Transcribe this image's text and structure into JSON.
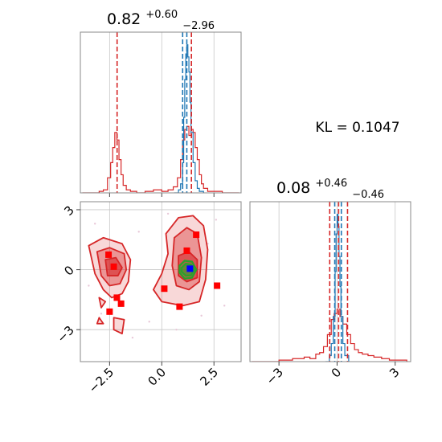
{
  "chart_data": [
    {
      "type": "histogram",
      "panel": "marginal-x",
      "title": {
        "main": "0.82",
        "sup": "+0.60",
        "sub": "−2.96"
      },
      "xlim": [
        -3.9,
        3.8
      ],
      "grid": true,
      "series": [
        {
          "name": "",
          "color": "#d62728",
          "x": [
            -3.8,
            -3.4,
            -3.0,
            -2.8,
            -2.6,
            -2.45,
            -2.35,
            -2.25,
            -2.15,
            -2.05,
            -1.95,
            -1.85,
            -1.7,
            -1.5,
            -1.2,
            -0.8,
            -0.4,
            0.0,
            0.3,
            0.55,
            0.75,
            0.9,
            1.0,
            1.1,
            1.2,
            1.3,
            1.4,
            1.5,
            1.6,
            1.7,
            1.8,
            1.9,
            2.0,
            2.2,
            2.5,
            2.9,
            3.3,
            3.7
          ],
          "y": [
            0,
            0,
            0.01,
            0.02,
            0.1,
            0.2,
            0.3,
            0.4,
            0.35,
            0.22,
            0.12,
            0.05,
            0.02,
            0.01,
            0.0,
            0.01,
            0.02,
            0.01,
            0.02,
            0.04,
            0.1,
            0.22,
            0.35,
            0.42,
            0.44,
            0.38,
            0.42,
            0.4,
            0.3,
            0.22,
            0.12,
            0.06,
            0.03,
            0.01,
            0.01,
            0.0,
            0,
            0
          ]
        },
        {
          "name": "",
          "color": "#1f77b4",
          "x": [
            0.6,
            0.8,
            0.9,
            1.0,
            1.05,
            1.1,
            1.15,
            1.2,
            1.25,
            1.3,
            1.35,
            1.4,
            1.5,
            1.6,
            1.7,
            1.8,
            2.0
          ],
          "y": [
            0,
            0.02,
            0.06,
            0.2,
            0.5,
            0.75,
            0.92,
            0.98,
            0.9,
            0.8,
            0.6,
            0.4,
            0.2,
            0.08,
            0.03,
            0.01,
            0
          ]
        }
      ],
      "vlines": [
        {
          "x": -2.14,
          "color": "#d62728"
        },
        {
          "x": 1.0,
          "color": "#1f77b4"
        },
        {
          "x": 1.2,
          "color": "#1f77b4"
        },
        {
          "x": 1.42,
          "color": "#d62728"
        }
      ]
    },
    {
      "type": "contour",
      "panel": "joint",
      "xlim": [
        -3.9,
        3.8
      ],
      "ylim": [
        -4.6,
        3.4
      ],
      "xticks": [
        "−2.5",
        "0.0",
        "2.5"
      ],
      "xtick_values": [
        -2.5,
        0.0,
        2.5
      ],
      "yticks": [
        "−3",
        "0",
        "3"
      ],
      "ytick_values": [
        -3,
        0,
        3
      ],
      "grid": true,
      "contours_red": [
        {
          "level": "outer",
          "points": [
            [
              -3.5,
              1.2
            ],
            [
              -2.8,
              1.6
            ],
            [
              -1.9,
              1.3
            ],
            [
              -1.5,
              0.5
            ],
            [
              -1.6,
              -0.6
            ],
            [
              -1.9,
              -1.2
            ],
            [
              -2.4,
              -1.4
            ],
            [
              -2.8,
              -1.0
            ],
            [
              -3.2,
              -0.2
            ]
          ]
        },
        {
          "level": "mid",
          "points": [
            [
              -3.1,
              0.9
            ],
            [
              -2.5,
              1.1
            ],
            [
              -1.8,
              0.8
            ],
            [
              -1.7,
              0.0
            ],
            [
              -2.0,
              -0.7
            ],
            [
              -2.5,
              -0.8
            ],
            [
              -2.9,
              -0.3
            ]
          ]
        },
        {
          "level": "inner",
          "points": [
            [
              -2.7,
              0.5
            ],
            [
              -2.2,
              0.6
            ],
            [
              -1.9,
              0.1
            ],
            [
              -2.1,
              -0.3
            ],
            [
              -2.6,
              -0.3
            ]
          ]
        },
        {
          "level": "outer",
          "points": [
            [
              0.2,
              1.8
            ],
            [
              0.8,
              2.6
            ],
            [
              1.5,
              2.7
            ],
            [
              2.0,
              2.2
            ],
            [
              2.2,
              1.0
            ],
            [
              2.1,
              -0.5
            ],
            [
              1.8,
              -1.6
            ],
            [
              1.0,
              -1.8
            ],
            [
              0.0,
              -1.6
            ],
            [
              -0.4,
              -1.0
            ],
            [
              0.0,
              -0.2
            ],
            [
              0.3,
              0.8
            ]
          ]
        },
        {
          "level": "mid",
          "points": [
            [
              0.6,
              1.6
            ],
            [
              1.2,
              2.1
            ],
            [
              1.7,
              1.8
            ],
            [
              1.9,
              0.6
            ],
            [
              1.8,
              -0.6
            ],
            [
              1.3,
              -1.0
            ],
            [
              0.7,
              -0.8
            ],
            [
              0.5,
              0.2
            ]
          ]
        },
        {
          "level": "inner",
          "points": [
            [
              0.8,
              0.7
            ],
            [
              1.3,
              0.9
            ],
            [
              1.7,
              0.5
            ],
            [
              1.7,
              -0.4
            ],
            [
              1.2,
              -0.6
            ],
            [
              0.8,
              -0.3
            ]
          ]
        },
        {
          "level": "outer",
          "points": [
            [
              -3.0,
              -1.4
            ],
            [
              -2.7,
              -1.6
            ],
            [
              -2.9,
              -1.9
            ]
          ]
        },
        {
          "level": "outer",
          "points": [
            [
              -2.3,
              -2.4
            ],
            [
              -1.8,
              -2.5
            ],
            [
              -1.9,
              -3.2
            ],
            [
              -2.3,
              -3.0
            ]
          ]
        },
        {
          "level": "outer",
          "points": [
            [
              -3.0,
              -2.4
            ],
            [
              -2.8,
              -2.7
            ],
            [
              -3.1,
              -2.7
            ]
          ]
        }
      ],
      "contours_green": [
        {
          "points": [
            [
              0.85,
              0.2
            ],
            [
              1.1,
              0.45
            ],
            [
              1.45,
              0.4
            ],
            [
              1.65,
              0.0
            ],
            [
              1.45,
              -0.4
            ],
            [
              1.1,
              -0.45
            ],
            [
              0.85,
              -0.15
            ]
          ]
        },
        {
          "points": [
            [
              0.95,
              0.1
            ],
            [
              1.15,
              0.3
            ],
            [
              1.4,
              0.25
            ],
            [
              1.55,
              0.0
            ],
            [
              1.4,
              -0.28
            ],
            [
              1.15,
              -0.3
            ],
            [
              0.95,
              -0.1
            ]
          ]
        }
      ],
      "points_red": [
        [
          -2.55,
          0.75
        ],
        [
          -2.3,
          0.15
        ],
        [
          -2.15,
          -1.4
        ],
        [
          -1.95,
          -1.7
        ],
        [
          -2.5,
          -2.1
        ],
        [
          0.12,
          -0.95
        ],
        [
          0.85,
          -1.85
        ],
        [
          1.2,
          0.95
        ],
        [
          1.65,
          1.75
        ],
        [
          2.65,
          -0.8
        ]
      ],
      "point_blue": [
        1.35,
        0.05
      ]
    },
    {
      "type": "histogram",
      "panel": "marginal-y",
      "title": {
        "main": "0.08",
        "sup": "+0.46",
        "sub": "−0.46"
      },
      "xlim": [
        -4.5,
        3.8
      ],
      "xticks": [
        "−3",
        "0",
        "3"
      ],
      "xtick_values": [
        -3,
        0,
        3
      ],
      "grid": true,
      "series": [
        {
          "name": "",
          "color": "#d62728",
          "x": [
            -4.4,
            -3.0,
            -2.6,
            -2.3,
            -2.0,
            -1.7,
            -1.4,
            -1.1,
            -0.9,
            -0.7,
            -0.5,
            -0.3,
            -0.15,
            0.0,
            0.15,
            0.3,
            0.5,
            0.7,
            0.9,
            1.1,
            1.3,
            1.6,
            1.9,
            2.3,
            2.7,
            3.1,
            3.6
          ],
          "y": [
            0,
            0.01,
            0.01,
            0.02,
            0.02,
            0.03,
            0.02,
            0.05,
            0.06,
            0.1,
            0.18,
            0.28,
            0.32,
            0.35,
            0.3,
            0.25,
            0.18,
            0.12,
            0.08,
            0.06,
            0.05,
            0.04,
            0.03,
            0.02,
            0.01,
            0.01,
            0
          ]
        },
        {
          "name": "",
          "color": "#1f77b4",
          "x": [
            -0.6,
            -0.4,
            -0.3,
            -0.2,
            -0.1,
            -0.05,
            0.0,
            0.05,
            0.1,
            0.15,
            0.2,
            0.3,
            0.4,
            0.6
          ],
          "y": [
            0,
            0.04,
            0.12,
            0.3,
            0.6,
            0.85,
            0.98,
            0.9,
            0.7,
            0.5,
            0.3,
            0.12,
            0.04,
            0
          ]
        }
      ],
      "vlines": [
        {
          "x": -0.38,
          "color": "#d62728"
        },
        {
          "x": -0.12,
          "color": "#1f77b4"
        },
        {
          "x": 0.08,
          "color": "#d62728"
        },
        {
          "x": 0.22,
          "color": "#1f77b4"
        },
        {
          "x": 0.54,
          "color": "#d62728"
        }
      ]
    }
  ],
  "annotation": {
    "kl_text": "KL = 0.1047"
  }
}
